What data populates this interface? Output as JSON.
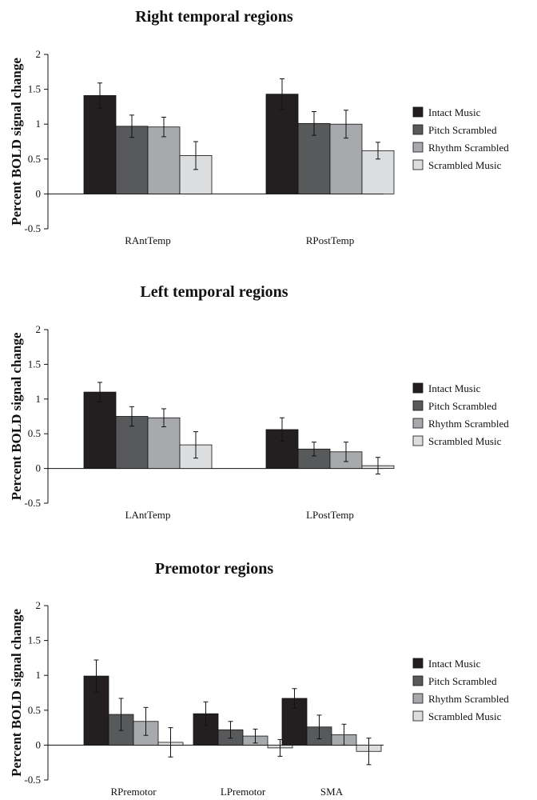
{
  "chart_data": [
    {
      "type": "bar",
      "title": "Right temporal regions",
      "xlabel": "",
      "ylabel": "Percent BOLD signal change",
      "ylim": [
        -0.5,
        2
      ],
      "yticks": [
        "2",
        "1.5",
        "1",
        "0.5",
        "0",
        "-0.5"
      ],
      "categories": [
        "RAntTemp",
        "RPostTemp"
      ],
      "legend": "right",
      "series": [
        {
          "name": "Intact Music",
          "color": "#231f20",
          "values": [
            1.41,
            1.43
          ],
          "err": [
            0.18,
            0.22
          ]
        },
        {
          "name": "Pitch Scrambled",
          "color": "#58595b",
          "values": [
            0.97,
            1.01
          ],
          "err": [
            0.16,
            0.17
          ]
        },
        {
          "name": "Rhythm Scrambled",
          "color": "#a7a9ac",
          "values": [
            0.96,
            1.0
          ],
          "err": [
            0.14,
            0.2
          ]
        },
        {
          "name": "Scrambled Music",
          "color": "#dcddde",
          "values": [
            0.55,
            0.62
          ],
          "err": [
            0.2,
            0.12
          ]
        }
      ]
    },
    {
      "type": "bar",
      "title": "Left temporal regions",
      "xlabel": "",
      "ylabel": "Percent BOLD signal change",
      "ylim": [
        -0.5,
        2
      ],
      "yticks": [
        "2",
        "1.5",
        "1",
        "0.5",
        "0",
        "-0.5"
      ],
      "categories": [
        "LAntTemp",
        "LPostTemp"
      ],
      "legend": "right",
      "series": [
        {
          "name": "Intact Music",
          "color": "#231f20",
          "values": [
            1.1,
            0.56
          ],
          "err": [
            0.14,
            0.17
          ]
        },
        {
          "name": "Pitch Scrambled",
          "color": "#58595b",
          "values": [
            0.75,
            0.28
          ],
          "err": [
            0.14,
            0.1
          ]
        },
        {
          "name": "Rhythm Scrambled",
          "color": "#a7a9ac",
          "values": [
            0.73,
            0.24
          ],
          "err": [
            0.13,
            0.14
          ]
        },
        {
          "name": "Scrambled Music",
          "color": "#dcddde",
          "values": [
            0.34,
            0.04
          ],
          "err": [
            0.19,
            0.12
          ]
        }
      ]
    },
    {
      "type": "bar",
      "title": "Premotor regions",
      "xlabel": "",
      "ylabel": "Percent BOLD signal change",
      "ylim": [
        -0.5,
        2
      ],
      "yticks": [
        "2",
        "1.5",
        "1",
        "0.5",
        "0",
        "-0.5"
      ],
      "categories": [
        "RPremotor",
        "LPremotor",
        "SMA"
      ],
      "legend": "right",
      "series": [
        {
          "name": "Intact Music",
          "color": "#231f20",
          "values": [
            0.99,
            0.45,
            0.67
          ],
          "err": [
            0.23,
            0.17,
            0.14
          ]
        },
        {
          "name": "Pitch Scrambled",
          "color": "#58595b",
          "values": [
            0.44,
            0.22,
            0.26
          ],
          "err": [
            0.23,
            0.12,
            0.17
          ]
        },
        {
          "name": "Rhythm Scrambled",
          "color": "#a7a9ac",
          "values": [
            0.34,
            0.13,
            0.15
          ],
          "err": [
            0.2,
            0.1,
            0.15
          ]
        },
        {
          "name": "Scrambled Music",
          "color": "#dcddde",
          "values": [
            0.04,
            -0.04,
            -0.09
          ],
          "err": [
            0.21,
            0.12,
            0.19
          ]
        }
      ]
    }
  ]
}
